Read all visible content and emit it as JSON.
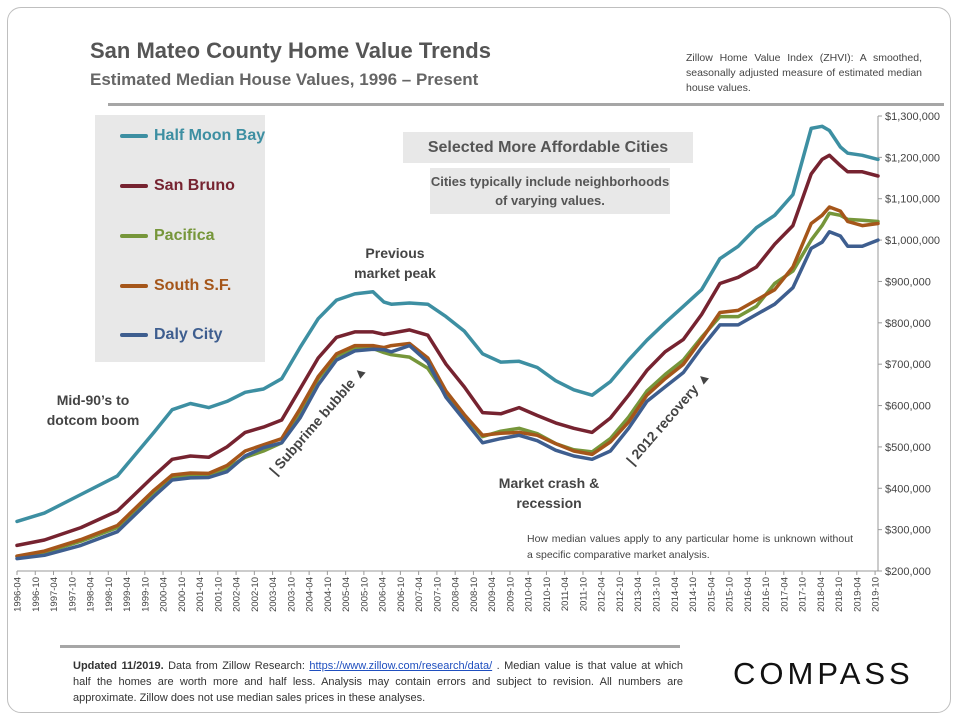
{
  "header": {
    "title": "San Mateo County Home Value Trends",
    "subtitle": "Estimated Median House Values, 1996 – Present",
    "zhvi_note": "Zillow Home Value Index (ZHVI): A smoothed, seasonally adjusted measure of estimated median house values."
  },
  "legend": [
    {
      "label": "Half Moon Bay",
      "color": "#3d8fa2"
    },
    {
      "label": "San Bruno",
      "color": "#762330"
    },
    {
      "label": "Pacifica",
      "color": "#76963a"
    },
    {
      "label": "South S.F.",
      "color": "#a5561a"
    },
    {
      "label": "Daly City",
      "color": "#3e5e8f"
    }
  ],
  "boxes": {
    "selected": "Selected More Affordable Cities",
    "cities_note": "Cities typically include neighborhoods of varying values."
  },
  "annotations": {
    "mid90s": "Mid-90’s to dotcom boom",
    "previous_peak": "Previous market peak",
    "subprime": "| Subprime bubble ▲",
    "crash": "Market crash & recession",
    "recovery": "| 2012 recovery ▲"
  },
  "disclaimer": "How median values apply to any particular home is unknown without a specific comparative market analysis.",
  "footer": {
    "updated": "Updated 11/2019.",
    "text_before_link": " Data from Zillow Research: ",
    "link": "https://www.zillow.com/research/data/",
    "text_after_link": " . Median value is that value at which half the homes are worth more and half less. Analysis may contain errors and subject to revision. All numbers are approximate. Zillow does not use median sales prices in these analyses."
  },
  "logo": "COMPASS",
  "chart_data": {
    "type": "line",
    "title": "San Mateo County Home Value Trends",
    "subtitle": "Estimated Median House Values, 1996 – Present",
    "xlabel": "",
    "ylabel": "",
    "ylim": [
      200000,
      1300000
    ],
    "y_ticks": [
      "$200,000",
      "$300,000",
      "$400,000",
      "$500,000",
      "$600,000",
      "$700,000",
      "$800,000",
      "$900,000",
      "$1,000,000",
      "$1,100,000",
      "$1,200,000",
      "$1,300,000"
    ],
    "x_ticks": [
      "1996-04",
      "1996-10",
      "1997-04",
      "1997-10",
      "1998-04",
      "1998-10",
      "1999-04",
      "1999-10",
      "2000-04",
      "2000-10",
      "2001-04",
      "2001-10",
      "2002-04",
      "2002-10",
      "2003-04",
      "2003-10",
      "2004-04",
      "2004-10",
      "2005-04",
      "2005-10",
      "2006-04",
      "2006-10",
      "2007-04",
      "2007-10",
      "2008-04",
      "2008-10",
      "2009-04",
      "2009-10",
      "2010-04",
      "2010-10",
      "2011-04",
      "2011-10",
      "2012-04",
      "2012-10",
      "2013-04",
      "2013-10",
      "2014-04",
      "2014-10",
      "2015-04",
      "2015-10",
      "2016-04",
      "2016-10",
      "2017-04",
      "2017-10",
      "2018-04",
      "2018-10",
      "2019-04",
      "2019-10"
    ],
    "x": [
      1996.25,
      1997.0,
      1998.0,
      1999.0,
      2000.0,
      2000.5,
      2001.0,
      2001.5,
      2002.0,
      2002.5,
      2003.0,
      2003.5,
      2004.0,
      2004.5,
      2005.0,
      2005.5,
      2006.0,
      2006.3,
      2006.5,
      2007.0,
      2007.5,
      2008.0,
      2008.5,
      2009.0,
      2009.5,
      2010.0,
      2010.5,
      2011.0,
      2011.5,
      2012.0,
      2012.5,
      2013.0,
      2013.5,
      2014.0,
      2014.5,
      2015.0,
      2015.5,
      2016.0,
      2016.5,
      2017.0,
      2017.5,
      2018.0,
      2018.3,
      2018.5,
      2018.8,
      2019.0,
      2019.4,
      2019.83
    ],
    "series": [
      {
        "name": "Half Moon Bay",
        "values": [
          320000,
          340000,
          385000,
          430000,
          535000,
          590000,
          605000,
          595000,
          610000,
          632000,
          640000,
          665000,
          740000,
          810000,
          855000,
          870000,
          875000,
          850000,
          845000,
          848000,
          845000,
          815000,
          780000,
          725000,
          705000,
          707000,
          692000,
          660000,
          638000,
          625000,
          658000,
          710000,
          758000,
          800000,
          840000,
          880000,
          955000,
          985000,
          1030000,
          1060000,
          1110000,
          1270000,
          1275000,
          1265000,
          1225000,
          1210000,
          1205000,
          1195000
        ]
      },
      {
        "name": "San Bruno",
        "values": [
          262000,
          275000,
          305000,
          345000,
          430000,
          470000,
          478000,
          475000,
          500000,
          535000,
          548000,
          565000,
          640000,
          715000,
          765000,
          778000,
          778000,
          772000,
          775000,
          783000,
          770000,
          700000,
          645000,
          583000,
          580000,
          595000,
          576000,
          558000,
          545000,
          535000,
          570000,
          625000,
          685000,
          730000,
          760000,
          820000,
          895000,
          910000,
          935000,
          990000,
          1035000,
          1160000,
          1195000,
          1205000,
          1180000,
          1165000,
          1165000,
          1155000
        ]
      },
      {
        "name": "Pacifica",
        "values": [
          235000,
          245000,
          272000,
          305000,
          385000,
          425000,
          432000,
          432000,
          448000,
          475000,
          490000,
          510000,
          585000,
          665000,
          720000,
          738000,
          738000,
          728000,
          723000,
          717000,
          690000,
          625000,
          575000,
          525000,
          538000,
          545000,
          532000,
          508000,
          493000,
          488000,
          520000,
          572000,
          635000,
          675000,
          710000,
          765000,
          815000,
          815000,
          840000,
          895000,
          925000,
          1000000,
          1035000,
          1065000,
          1060000,
          1050000,
          1048000,
          1045000
        ]
      },
      {
        "name": "South S.F.",
        "values": [
          236000,
          248000,
          276000,
          310000,
          395000,
          432000,
          437000,
          436000,
          455000,
          490000,
          505000,
          520000,
          592000,
          670000,
          725000,
          745000,
          745000,
          740000,
          745000,
          750000,
          715000,
          635000,
          578000,
          528000,
          533000,
          535000,
          528000,
          508000,
          490000,
          482000,
          512000,
          560000,
          625000,
          665000,
          700000,
          760000,
          825000,
          830000,
          855000,
          880000,
          935000,
          1040000,
          1060000,
          1080000,
          1070000,
          1045000,
          1035000,
          1040000
        ]
      },
      {
        "name": "Daly City",
        "values": [
          230000,
          238000,
          262000,
          295000,
          380000,
          420000,
          425000,
          426000,
          440000,
          478000,
          498000,
          510000,
          570000,
          650000,
          710000,
          732000,
          736000,
          735000,
          730000,
          745000,
          705000,
          620000,
          565000,
          510000,
          520000,
          528000,
          515000,
          492000,
          478000,
          470000,
          490000,
          545000,
          610000,
          645000,
          680000,
          740000,
          795000,
          795000,
          820000,
          845000,
          885000,
          980000,
          995000,
          1020000,
          1010000,
          985000,
          985000,
          1000000
        ]
      }
    ]
  }
}
